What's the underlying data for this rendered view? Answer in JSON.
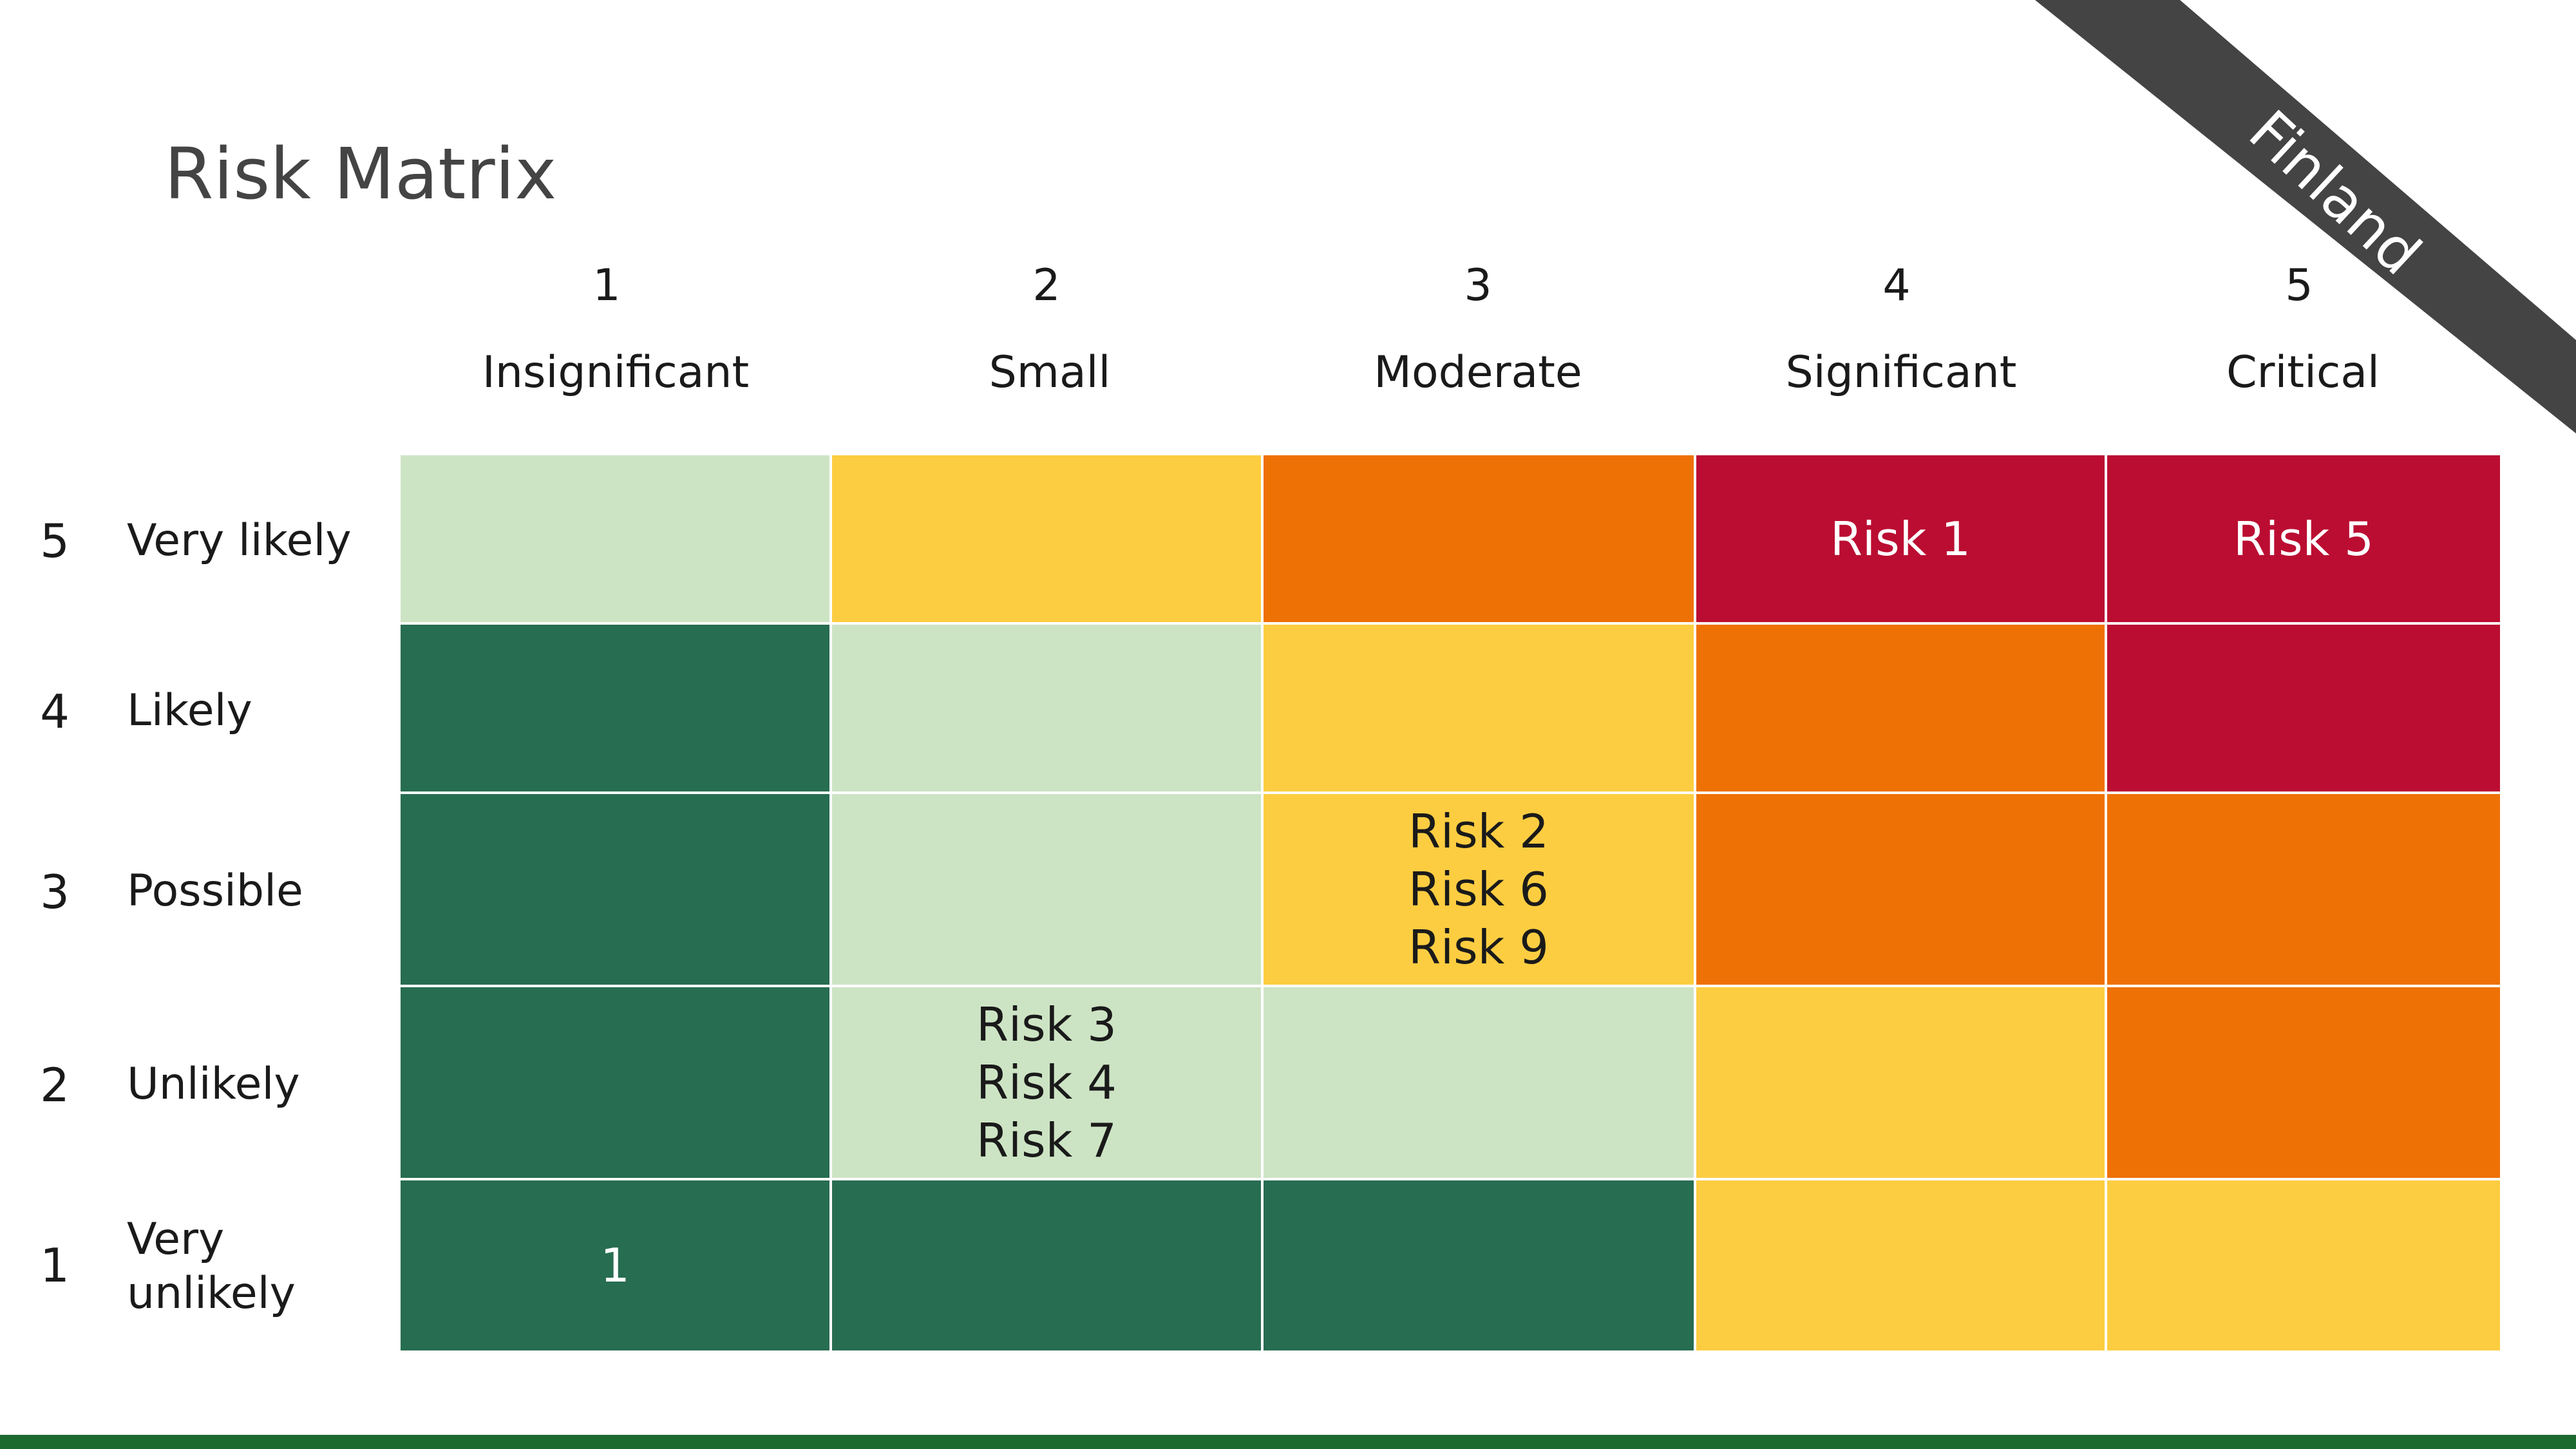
{
  "title": "Risk Matrix",
  "ribbon": {
    "label": "Finland",
    "color": "#444444"
  },
  "colors": {
    "dark_green": "#276d51",
    "light_green": "#cde4c4",
    "yellow": "#fdcd41",
    "orange": "#ee7105",
    "red": "#bb0d32",
    "footer": "#1d6a2f"
  },
  "columns": [
    {
      "number": "1",
      "label": "Insignificant"
    },
    {
      "number": "2",
      "label": "Small"
    },
    {
      "number": "3",
      "label": "Moderate"
    },
    {
      "number": "4",
      "label": "Significant"
    },
    {
      "number": "5",
      "label": "Critical"
    }
  ],
  "rows": [
    {
      "number": "5",
      "label": "Very likely"
    },
    {
      "number": "4",
      "label": "Likely"
    },
    {
      "number": "3",
      "label": "Possible"
    },
    {
      "number": "2",
      "label": "Unlikely"
    },
    {
      "number": "1",
      "label": "Very unlikely"
    }
  ],
  "cells": [
    [
      {
        "color": "light_green",
        "items": []
      },
      {
        "color": "yellow",
        "items": []
      },
      {
        "color": "orange",
        "items": []
      },
      {
        "color": "red",
        "items": [
          "Risk 1"
        ]
      },
      {
        "color": "red",
        "items": [
          "Risk 5"
        ]
      }
    ],
    [
      {
        "color": "dark_green",
        "items": []
      },
      {
        "color": "light_green",
        "items": []
      },
      {
        "color": "yellow",
        "items": []
      },
      {
        "color": "orange",
        "items": []
      },
      {
        "color": "red",
        "items": []
      }
    ],
    [
      {
        "color": "dark_green",
        "items": []
      },
      {
        "color": "light_green",
        "items": []
      },
      {
        "color": "yellow",
        "items": [
          "Risk 2",
          "Risk 6",
          "Risk 9"
        ]
      },
      {
        "color": "orange",
        "items": []
      },
      {
        "color": "orange",
        "items": []
      }
    ],
    [
      {
        "color": "dark_green",
        "items": []
      },
      {
        "color": "light_green",
        "items": [
          "Risk 3",
          "Risk 4",
          "Risk 7"
        ]
      },
      {
        "color": "light_green",
        "items": []
      },
      {
        "color": "yellow",
        "items": []
      },
      {
        "color": "orange",
        "items": []
      }
    ],
    [
      {
        "color": "dark_green",
        "items": [
          "1"
        ]
      },
      {
        "color": "dark_green",
        "items": []
      },
      {
        "color": "dark_green",
        "items": []
      },
      {
        "color": "yellow",
        "items": []
      },
      {
        "color": "yellow",
        "items": []
      }
    ]
  ]
}
